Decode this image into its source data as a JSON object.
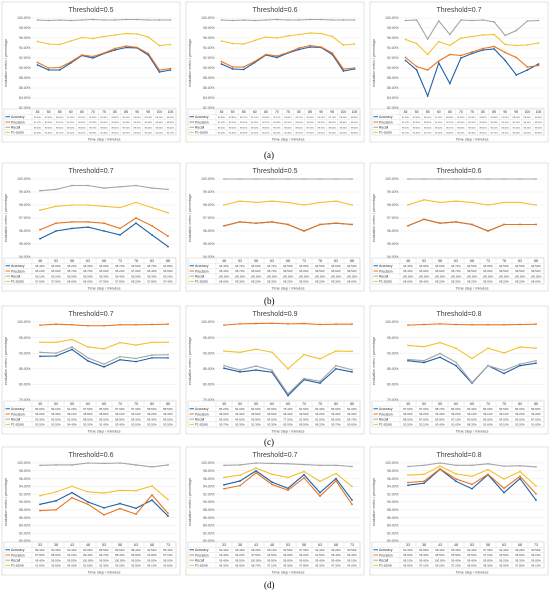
{
  "panel_labels": [
    "(a)",
    "(b)",
    "(c)",
    "(d)"
  ],
  "common": {
    "ylabel": "evaluation metric / percentage",
    "xlabel": "Time step / minutes",
    "series_names": [
      "Accuracy",
      "Precision",
      "Recall",
      "F1-score"
    ],
    "colors": {
      "Accuracy": "#1f5fa8",
      "Precision": "#e8741e",
      "Recall": "#a5a5a5",
      "F1-score": "#f2c12e"
    }
  },
  "chart_data": [
    {
      "type": "line",
      "title": "Threshold=0.5",
      "ylabel": "evaluation metric / percentage",
      "xlabel": "Time step / minutes",
      "x": [
        "45",
        "50",
        "55",
        "60",
        "65",
        "70",
        "75",
        "80",
        "85",
        "90",
        "95",
        "100",
        "105"
      ],
      "ylim": [
        0.82,
        1.0
      ],
      "yticks": [
        "82.00%",
        "84.00%",
        "86.00%",
        "88.00%",
        "90.00%",
        "92.00%",
        "94.00%",
        "96.00%",
        "98.00%",
        "100.00%"
      ],
      "series": [
        {
          "name": "Accuracy",
          "values": [
            90.6,
            89.6,
            89.6,
            91.0,
            92.5,
            92.0,
            92.9,
            93.6,
            94.1,
            94.0,
            92.6,
            89.2,
            89.6
          ]
        },
        {
          "name": "Precision",
          "values": [
            91.1,
            90.0,
            90.1,
            91.2,
            92.6,
            92.3,
            93.0,
            93.9,
            94.4,
            94.1,
            92.9,
            89.6,
            89.9
          ]
        },
        {
          "name": "Recall",
          "values": [
            99.6,
            99.5,
            99.6,
            99.5,
            99.6,
            99.7,
            99.6,
            99.6,
            99.7,
            99.7,
            99.6,
            99.6,
            99.6
          ]
        },
        {
          "name": "F1-score",
          "values": [
            95.3,
            94.8,
            94.7,
            95.4,
            96.1,
            95.9,
            96.3,
            96.6,
            96.9,
            96.8,
            96.2,
            94.5,
            94.7
          ]
        }
      ]
    },
    {
      "type": "line",
      "title": "Threshold=0.6",
      "ylabel": "evaluation metric / percentage",
      "xlabel": "Time step / minutes",
      "x": [
        "45",
        "50",
        "55",
        "60",
        "65",
        "70",
        "75",
        "80",
        "85",
        "90",
        "95",
        "100",
        "105"
      ],
      "ylim": [
        0.82,
        1.0
      ],
      "yticks": [
        "82.00%",
        "84.00%",
        "86.00%",
        "88.00%",
        "90.00%",
        "92.00%",
        "94.00%",
        "96.00%",
        "98.00%",
        "100.00%"
      ],
      "series": [
        {
          "name": "Accuracy",
          "values": [
            90.8,
            89.8,
            89.7,
            91.1,
            92.6,
            92.1,
            93.0,
            93.7,
            94.2,
            94.1,
            92.7,
            89.4,
            89.8
          ]
        },
        {
          "name": "Precision",
          "values": [
            91.3,
            90.2,
            90.2,
            91.3,
            92.7,
            92.4,
            93.1,
            94.0,
            94.5,
            94.2,
            93.0,
            89.8,
            90.0
          ]
        },
        {
          "name": "Recall",
          "values": [
            99.6,
            99.5,
            99.6,
            99.5,
            99.6,
            99.7,
            99.6,
            99.6,
            99.7,
            99.7,
            99.6,
            99.6,
            99.6
          ]
        },
        {
          "name": "F1-score",
          "values": [
            95.4,
            94.9,
            94.8,
            95.5,
            96.2,
            96.0,
            96.4,
            96.7,
            97.0,
            96.9,
            96.3,
            94.6,
            94.8
          ]
        }
      ]
    },
    {
      "type": "line",
      "title": "Threshold=0.7",
      "ylabel": "evaluation metric / percentage",
      "xlabel": "Time step / minutes",
      "x": [
        "45",
        "50",
        "55",
        "60",
        "65",
        "70",
        "75",
        "80",
        "85",
        "90",
        "95",
        "100",
        "105"
      ],
      "ylim": [
        0.82,
        1.0
      ],
      "yticks": [
        "82.00%",
        "84.00%",
        "86.00%",
        "88.00%",
        "90.00%",
        "92.00%",
        "94.00%",
        "96.00%",
        "98.00%",
        "100.00%"
      ],
      "series": [
        {
          "name": "Accuracy",
          "values": [
            91.5,
            89.6,
            84.4,
            91.0,
            86.9,
            92.0,
            92.9,
            93.6,
            93.8,
            91.5,
            88.6,
            89.6,
            90.8
          ]
        },
        {
          "name": "Precision",
          "values": [
            92.1,
            90.3,
            89.6,
            91.4,
            92.7,
            92.5,
            93.2,
            93.9,
            94.3,
            93.1,
            92.1,
            90.2,
            90.5
          ]
        },
        {
          "name": "Recall",
          "values": [
            99.5,
            99.6,
            95.8,
            99.4,
            96.7,
            99.6,
            99.5,
            99.6,
            99.2,
            96.5,
            97.5,
            99.4,
            99.5
          ]
        },
        {
          "name": "F1-score",
          "values": [
            95.7,
            94.9,
            92.7,
            95.3,
            94.5,
            96.0,
            96.3,
            96.6,
            96.7,
            94.7,
            94.5,
            94.6,
            95.0
          ]
        }
      ]
    },
    {
      "type": "line",
      "title": "Threshold=0.7",
      "ylabel": "evaluation metric / percentage",
      "xlabel": "Time step / minutes",
      "x": [
        "48",
        "53",
        "58",
        "63",
        "68",
        "73",
        "78",
        "83",
        "88"
      ],
      "ylim": [
        0.94,
        1.0
      ],
      "yticks": [
        "94.00%",
        "95.00%",
        "96.00%",
        "97.00%",
        "98.00%",
        "99.00%",
        "100.00%"
      ],
      "series": [
        {
          "name": "Accuracy",
          "values": [
            95.4,
            96.0,
            96.2,
            96.3,
            96.0,
            95.7,
            96.6,
            95.7,
            94.8
          ]
        },
        {
          "name": "Precision",
          "values": [
            96.1,
            96.6,
            96.7,
            96.7,
            96.6,
            96.2,
            97.0,
            96.4,
            95.6
          ]
        },
        {
          "name": "Recall",
          "values": [
            99.1,
            99.2,
            99.5,
            99.5,
            99.3,
            99.4,
            99.5,
            99.3,
            99.2
          ]
        },
        {
          "name": "F1-score",
          "values": [
            97.6,
            97.9,
            98.0,
            98.0,
            97.9,
            97.8,
            98.2,
            97.8,
            97.4
          ]
        }
      ]
    },
    {
      "type": "line",
      "title": "Threshold=0.5",
      "ylabel": "evaluation metric / percentage",
      "xlabel": "Time step / minutes",
      "x": [
        "48",
        "53",
        "58",
        "63",
        "68",
        "73",
        "78",
        "83",
        "88"
      ],
      "ylim": [
        0.94,
        1.0
      ],
      "yticks": [
        "94.00%",
        "95.00%",
        "96.00%",
        "97.00%",
        "98.00%",
        "99.00%",
        "100.00%"
      ],
      "series": [
        {
          "name": "Accuracy",
          "values": [
            96.4,
            96.7,
            96.6,
            96.7,
            96.5,
            96.0,
            96.5,
            96.6,
            96.5
          ]
        },
        {
          "name": "Precision",
          "values": [
            96.4,
            96.7,
            96.6,
            96.7,
            96.5,
            96.0,
            96.5,
            96.6,
            96.5
          ]
        },
        {
          "name": "Recall",
          "values": [
            100,
            100,
            100,
            100,
            100,
            100,
            100,
            100,
            100
          ]
        },
        {
          "name": "F1-score",
          "values": [
            98.0,
            98.3,
            98.2,
            98.3,
            98.2,
            98.0,
            98.2,
            98.3,
            98.0
          ]
        }
      ]
    },
    {
      "type": "line",
      "title": "Threshold=0.6",
      "ylabel": "evaluation metric / percentage",
      "xlabel": "Time step / minutes",
      "x": [
        "48",
        "53",
        "58",
        "63",
        "68",
        "73",
        "78",
        "83",
        "88"
      ],
      "ylim": [
        0.94,
        1.0
      ],
      "yticks": [
        "94.00%",
        "95.00%",
        "96.00%",
        "97.00%",
        "98.00%",
        "99.00%",
        "100.00%"
      ],
      "series": [
        {
          "name": "Accuracy",
          "values": [
            96.4,
            96.9,
            96.6,
            96.7,
            96.5,
            96.0,
            96.5,
            96.5,
            96.5
          ]
        },
        {
          "name": "Precision",
          "values": [
            96.4,
            96.9,
            96.6,
            96.7,
            96.5,
            96.0,
            96.5,
            96.5,
            96.5
          ]
        },
        {
          "name": "Recall",
          "values": [
            100,
            100,
            100,
            100,
            100,
            100,
            100,
            100,
            100
          ]
        },
        {
          "name": "F1-score",
          "values": [
            98.0,
            98.4,
            98.2,
            98.3,
            98.2,
            98.0,
            98.2,
            98.2,
            98.0
          ]
        }
      ]
    },
    {
      "type": "line",
      "title": "Threshold=0.7",
      "ylabel": "evaluation metric / percentage",
      "xlabel": "Time step / minutes",
      "x": [
        "45",
        "50",
        "55",
        "60",
        "65",
        "70",
        "75",
        "80",
        "85"
      ],
      "ylim": [
        0.75,
        1.0
      ],
      "yticks": [
        "75.00%",
        "80.00%",
        "85.00%",
        "90.00%",
        "95.00%",
        "100.00%"
      ],
      "series": [
        {
          "name": "Accuracy",
          "values": [
            89.0,
            89.1,
            91.2,
            87.5,
            85.6,
            87.9,
            87.3,
            88.5,
            88.5
          ]
        },
        {
          "name": "Precision",
          "values": [
            99.0,
            99.3,
            99.1,
            98.8,
            98.8,
            99.1,
            99.1,
            99.2,
            99.3
          ]
        },
        {
          "name": "Recall",
          "values": [
            90.3,
            90.0,
            92.0,
            88.5,
            86.5,
            88.9,
            88.3,
            89.4,
            89.5
          ]
        },
        {
          "name": "F1-score",
          "values": [
            93.5,
            93.5,
            94.4,
            92.0,
            91.4,
            93.4,
            92.6,
            93.5,
            93.5
          ]
        }
      ]
    },
    {
      "type": "line",
      "title": "Threshold=0.9",
      "ylabel": "evaluation metric / percentage",
      "xlabel": "Time step / minutes",
      "x": [
        "45",
        "50",
        "55",
        "60",
        "65",
        "70",
        "75",
        "80",
        "85"
      ],
      "ylim": [
        0.75,
        1.0
      ],
      "yticks": [
        "75.00%",
        "80.00%",
        "85.00%",
        "90.00%",
        "95.00%",
        "100.00%"
      ],
      "series": [
        {
          "name": "Accuracy",
          "values": [
            85.2,
            84.0,
            84.6,
            83.9,
            76.4,
            81.5,
            80.4,
            85.0,
            84.0
          ]
        },
        {
          "name": "Precision",
          "values": [
            99.0,
            99.4,
            99.5,
            99.6,
            99.4,
            99.5,
            99.2,
            99.3,
            99.3
          ]
        },
        {
          "name": "Recall",
          "values": [
            86.0,
            84.6,
            85.9,
            84.5,
            77.0,
            81.9,
            81.0,
            86.0,
            84.7
          ]
        },
        {
          "name": "F1-score",
          "values": [
            90.7,
            90.3,
            91.3,
            90.3,
            85.0,
            89.5,
            88.2,
            90.7,
            90.6
          ]
        }
      ]
    },
    {
      "type": "line",
      "title": "Threshold=0.8",
      "ylabel": "evaluation metric / percentage",
      "xlabel": "Time step / minutes",
      "x": [
        "45",
        "50",
        "55",
        "60",
        "65",
        "70",
        "75",
        "80",
        "85"
      ],
      "ylim": [
        0.75,
        1.0
      ],
      "yticks": [
        "75.00%",
        "80.00%",
        "85.00%",
        "90.00%",
        "95.00%",
        "100.00%"
      ],
      "series": [
        {
          "name": "Accuracy",
          "values": [
            87.6,
            87.0,
            88.7,
            86.0,
            80.4,
            86.0,
            83.5,
            86.0,
            86.8
          ]
        },
        {
          "name": "Precision",
          "values": [
            99.0,
            99.2,
            99.4,
            99.2,
            99.1,
            99.1,
            99.1,
            99.2,
            99.3
          ]
        },
        {
          "name": "Recall",
          "values": [
            88.0,
            87.6,
            89.9,
            87.1,
            80.6,
            86.0,
            84.5,
            86.5,
            87.6
          ]
        },
        {
          "name": "F1-score",
          "values": [
            92.5,
            92.1,
            93.4,
            91.6,
            88.3,
            91.6,
            90.1,
            92.0,
            91.6
          ]
        }
      ]
    },
    {
      "type": "line",
      "title": "Threshold=0.6",
      "ylabel": "evaluation metric / percentage",
      "xlabel": "Time step / minutes",
      "x": [
        "33",
        "38",
        "43",
        "48",
        "53",
        "58",
        "63",
        "68",
        "73"
      ],
      "ylim": [
        0.8,
        1.0
      ],
      "yticks": [
        "80.00%",
        "82.00%",
        "84.00%",
        "86.00%",
        "88.00%",
        "90.00%",
        "92.00%",
        "94.00%",
        "96.00%",
        "98.00%",
        "100.00%"
      ],
      "series": [
        {
          "name": "Accuracy",
          "values": [
            89.4,
            90.3,
            92.4,
            90.0,
            88.5,
            89.6,
            88.4,
            90.5,
            86.4
          ]
        },
        {
          "name": "Precision",
          "values": [
            87.8,
            88.0,
            91.1,
            89.4,
            86.7,
            88.3,
            86.9,
            91.8,
            87.1
          ]
        },
        {
          "name": "Recall",
          "values": [
            99.4,
            99.5,
            99.5,
            100.0,
            99.9,
            100.0,
            99.5,
            99.0,
            99.5
          ]
        },
        {
          "name": "F1-score",
          "values": [
            91.6,
            92.6,
            94.0,
            92.6,
            92.3,
            93.0,
            92.9,
            94.1,
            90.6
          ]
        }
      ]
    },
    {
      "type": "line",
      "title": "Threshold=0.7",
      "ylabel": "evaluation metric / percentage",
      "xlabel": "Time step / minutes",
      "x": [
        "33",
        "38",
        "43",
        "48",
        "53",
        "58",
        "63",
        "68",
        "73"
      ],
      "ylim": [
        0.8,
        1.0
      ],
      "yticks": [
        "80.00%",
        "82.00%",
        "84.00%",
        "86.00%",
        "88.00%",
        "90.00%",
        "92.00%",
        "94.00%",
        "96.00%",
        "98.00%",
        "100.00%"
      ],
      "series": [
        {
          "name": "Accuracy",
          "values": [
            94.4,
            95.4,
            98.0,
            95.1,
            93.5,
            97.0,
            92.4,
            96.0,
            90.5
          ]
        },
        {
          "name": "Precision",
          "values": [
            93.4,
            94.2,
            97.5,
            94.5,
            93.0,
            96.2,
            91.5,
            95.4,
            89.4
          ]
        },
        {
          "name": "Recall",
          "values": [
            99.4,
            99.5,
            100.0,
            99.9,
            99.8,
            99.6,
            99.4,
            99.4,
            99.1
          ]
        },
        {
          "name": "F1-score",
          "values": [
            96.3,
            96.9,
            98.7,
            97.1,
            96.3,
            97.8,
            95.3,
            97.3,
            94.0
          ]
        }
      ]
    },
    {
      "type": "line",
      "title": "Threshold=0.8",
      "ylabel": "evaluation metric / percentage",
      "xlabel": "Time step / minutes",
      "x": [
        "33",
        "38",
        "43",
        "48",
        "53",
        "58",
        "63",
        "68",
        "73"
      ],
      "ylim": [
        0.8,
        1.0
      ],
      "yticks": [
        "80.00%",
        "82.00%",
        "84.00%",
        "86.00%",
        "88.00%",
        "90.00%",
        "92.00%",
        "94.00%",
        "96.00%",
        "98.00%",
        "100.00%"
      ],
      "series": [
        {
          "name": "Accuracy",
          "values": [
            94.3,
            94.8,
            98.4,
            95.3,
            93.4,
            97.0,
            92.4,
            96.0,
            90.5
          ]
        },
        {
          "name": "Precision",
          "values": [
            95.0,
            95.3,
            98.5,
            95.9,
            94.5,
            97.1,
            93.5,
            96.6,
            92.1
          ]
        },
        {
          "name": "Recall",
          "values": [
            99.1,
            99.4,
            100.0,
            99.4,
            99.4,
            99.8,
            99.2,
            99.3,
            99.0
          ]
        },
        {
          "name": "F1-score",
          "values": [
            96.9,
            97.1,
            99.2,
            97.2,
            96.6,
            98.3,
            95.9,
            97.8,
            94.1
          ]
        }
      ]
    }
  ]
}
